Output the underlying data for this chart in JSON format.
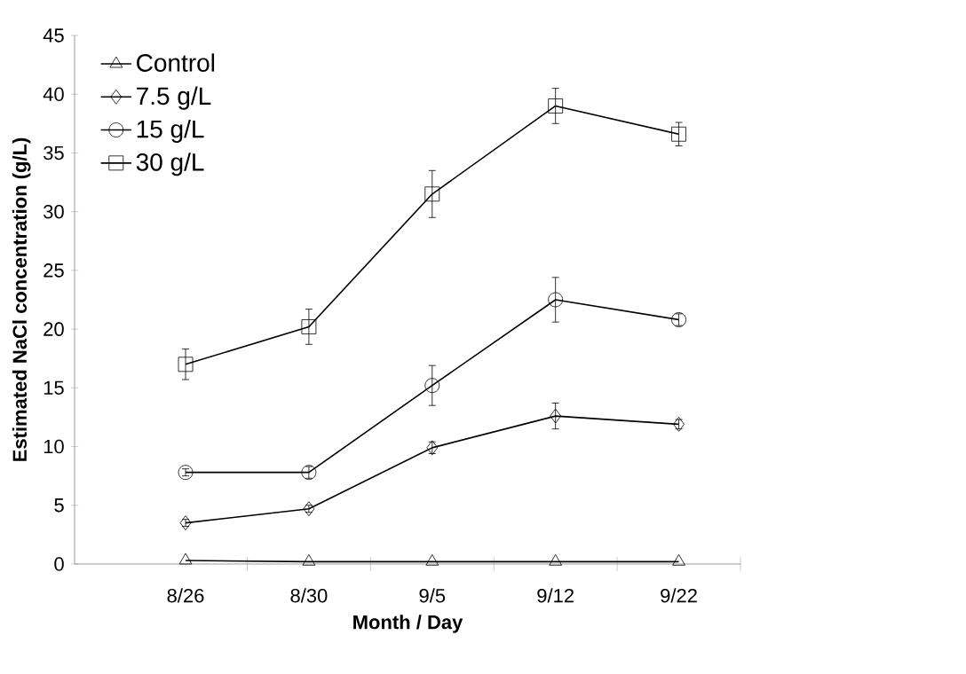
{
  "chart_data": {
    "type": "line",
    "xlabel": "Month / Day",
    "ylabel": "Estimated NaCl concentration (g/L)",
    "categories": [
      "8/26",
      "8/30",
      "9/5",
      "9/12",
      "9/22"
    ],
    "ylim": [
      0,
      45
    ],
    "yticks": [
      0,
      5,
      10,
      15,
      20,
      25,
      30,
      35,
      40,
      45
    ],
    "grid": false,
    "legend": "top left",
    "line_style": "solid",
    "series": [
      {
        "name": "Control",
        "color": "#000000",
        "marker": "triangle",
        "values": [
          0.3,
          0.2,
          0.2,
          0.2,
          0.2
        ],
        "errors": [
          null,
          null,
          null,
          null,
          null
        ]
      },
      {
        "name": "7.5 g/L",
        "color": "#000000",
        "marker": "diamond",
        "values": [
          3.5,
          4.7,
          9.9,
          12.6,
          11.9
        ],
        "errors": [
          0.3,
          0.3,
          0.5,
          1.1,
          0.4
        ]
      },
      {
        "name": "15 g/L",
        "color": "#000000",
        "marker": "circle",
        "values": [
          7.8,
          7.8,
          15.2,
          22.5,
          20.8
        ],
        "errors": [
          0.3,
          0.5,
          1.7,
          1.9,
          0.5
        ]
      },
      {
        "name": "30 g/L",
        "color": "#000000",
        "marker": "square",
        "values": [
          17.0,
          20.2,
          31.5,
          39.0,
          36.6
        ],
        "errors": [
          1.3,
          1.5,
          2.0,
          1.5,
          1.0
        ]
      }
    ]
  }
}
